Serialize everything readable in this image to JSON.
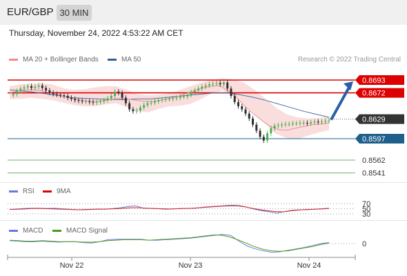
{
  "header": {
    "pair": "EUR/GBP",
    "timeframe": "30 MIN"
  },
  "datetime": "Thursday, November 24, 2022 4:53:22 AM CET",
  "credit": "Research © 2022 Trading Central",
  "colors": {
    "up": "#4caf50",
    "down": "#2e2e2e",
    "bollinger": "#f5b5b5",
    "ma20": "#e89090",
    "ma50": "#4a6fa5",
    "resistance": "#dd0000",
    "current": "#333333",
    "support": "#1f5f8b",
    "support2": "#6ab56a",
    "arrow": "#2a5ea8",
    "rsi": "#5b7fd6",
    "rsi9": "#dd2222",
    "macd": "#5b7fd6",
    "macdSignal": "#5a9a1e"
  },
  "legends": {
    "price": [
      {
        "label": "MA 20 + Bollinger Bands",
        "color": "#f08a8a"
      },
      {
        "label": "MA 50",
        "color": "#2e5f9e"
      }
    ],
    "rsi": [
      {
        "label": "RSI",
        "color": "#5b7fd6"
      },
      {
        "label": "9MA",
        "color": "#dd0000"
      }
    ],
    "macd": [
      {
        "label": "MACD",
        "color": "#5b7fd6"
      },
      {
        "label": "MACD Signal",
        "color": "#4a9a1a"
      }
    ]
  },
  "chart_data": {
    "type": "candlestick",
    "x_ticks": [
      "Nov 22",
      "Nov 23",
      "Nov 24"
    ],
    "ylim": [
      0.853,
      0.87
    ],
    "levels": [
      {
        "label": "0.8693",
        "value": 0.8693,
        "kind": "resistance"
      },
      {
        "label": "0.8672",
        "value": 0.8672,
        "kind": "resistance"
      },
      {
        "label": "0.8629",
        "value": 0.8629,
        "kind": "current"
      },
      {
        "label": "0.8597",
        "value": 0.8597,
        "kind": "support"
      },
      {
        "label": "0.8562",
        "value": 0.8562,
        "kind": "support2"
      },
      {
        "label": "0.8541",
        "value": 0.8541,
        "kind": "support2"
      }
    ],
    "close_series": [
      0.8668,
      0.867,
      0.8675,
      0.8679,
      0.8681,
      0.8683,
      0.868,
      0.8682,
      0.8684,
      0.868,
      0.8676,
      0.8672,
      0.867,
      0.8669,
      0.8668,
      0.8667,
      0.8664,
      0.8662,
      0.866,
      0.8659,
      0.8658,
      0.8658,
      0.8657,
      0.8656,
      0.8657,
      0.8658,
      0.866,
      0.8663,
      0.8667,
      0.8674,
      0.8672,
      0.8664,
      0.8655,
      0.8645,
      0.8642,
      0.8643,
      0.8648,
      0.8652,
      0.8655,
      0.8656,
      0.8658,
      0.866,
      0.8661,
      0.8662,
      0.8662,
      0.8663,
      0.8664,
      0.8666,
      0.8666,
      0.8669,
      0.8673,
      0.8676,
      0.8679,
      0.8682,
      0.8684,
      0.8686,
      0.8687,
      0.8688,
      0.8686,
      0.8689,
      0.8679,
      0.8667,
      0.8657,
      0.865,
      0.8645,
      0.8638,
      0.863,
      0.862,
      0.861,
      0.86,
      0.8594,
      0.8606,
      0.8614,
      0.8618,
      0.8619,
      0.862,
      0.8621,
      0.8621,
      0.8622,
      0.8622,
      0.8623,
      0.8623,
      0.8622,
      0.8624,
      0.8625,
      0.8624,
      0.8625,
      0.8626,
      0.8627
    ],
    "ma20": [
      0.8672,
      0.8675,
      0.8677,
      0.8677,
      0.8675,
      0.8671,
      0.8668,
      0.8664,
      0.8661,
      0.8659,
      0.8658,
      0.8659,
      0.8661,
      0.8663,
      0.8662,
      0.866,
      0.8658,
      0.8658,
      0.866,
      0.8663,
      0.8666,
      0.8671,
      0.8676,
      0.868,
      0.8683,
      0.8684,
      0.8675,
      0.8664,
      0.865,
      0.8638,
      0.8627,
      0.8617,
      0.8612,
      0.8611,
      0.8614,
      0.8617,
      0.862,
      0.8621,
      0.8623
    ],
    "ma50": [
      0.8677,
      0.8675,
      0.8673,
      0.867,
      0.8667,
      0.8664,
      0.8663,
      0.8662,
      0.8661,
      0.8661,
      0.8662,
      0.8662,
      0.8664,
      0.8666,
      0.8668,
      0.867,
      0.8672,
      0.8672,
      0.8669,
      0.8665,
      0.866,
      0.8654,
      0.8648,
      0.8642,
      0.8637,
      0.8632
    ],
    "bollinger_upper": [
      0.8683,
      0.8686,
      0.8687,
      0.8688,
      0.8686,
      0.868,
      0.8677,
      0.8678,
      0.8681,
      0.8683,
      0.8683,
      0.8677,
      0.867,
      0.8668,
      0.8669,
      0.8671,
      0.8677,
      0.8683,
      0.8689,
      0.8693,
      0.8696,
      0.8694,
      0.8689,
      0.8677,
      0.8663,
      0.8648,
      0.8637,
      0.8632,
      0.863,
      0.8631,
      0.8633
    ],
    "bollinger_lower": [
      0.8662,
      0.8662,
      0.8664,
      0.8662,
      0.866,
      0.8656,
      0.8652,
      0.865,
      0.865,
      0.8653,
      0.8655,
      0.8648,
      0.8642,
      0.864,
      0.8646,
      0.865,
      0.8651,
      0.8654,
      0.8662,
      0.8671,
      0.8676,
      0.8668,
      0.8653,
      0.8638,
      0.8622,
      0.8605,
      0.8598,
      0.8596,
      0.8602,
      0.8607,
      0.8611
    ],
    "projection": {
      "from": 0.8628,
      "to": 0.8693
    },
    "rsi": {
      "levels": [
        "70",
        "50",
        "30"
      ],
      "values": [
        47,
        49,
        51,
        52,
        52,
        51,
        52,
        50,
        48,
        46,
        46,
        47,
        49,
        48,
        51,
        54,
        59,
        61,
        52,
        51,
        50,
        48,
        49,
        51,
        51,
        52,
        56,
        58,
        60,
        62,
        64,
        62,
        56,
        48,
        42,
        38,
        33,
        39,
        44,
        46,
        46,
        48,
        50,
        52
      ]
    },
    "rsi9": [
      47,
      48,
      49,
      51,
      51,
      50,
      49,
      48,
      47,
      46,
      47,
      48,
      48,
      49,
      50,
      52,
      54,
      54,
      52,
      51,
      50,
      49,
      50,
      51,
      52,
      54,
      56,
      58,
      60,
      61,
      61,
      57,
      51,
      46,
      42,
      39,
      38,
      42,
      45,
      47,
      48,
      49,
      51
    ],
    "macd": {
      "levels": [
        "0"
      ],
      "values": [
        0.6,
        0.5,
        0.4,
        0.4,
        0.5,
        0.4,
        0.3,
        0.4,
        0.4,
        0.2,
        0.1,
        0.4,
        0.8,
        0.9,
        0.9,
        0.9,
        0.9,
        0.7,
        0.7,
        0.8,
        0.9,
        1.0,
        1.1,
        1.3,
        1.5,
        1.7,
        1.9,
        1.7,
        0.5,
        -0.5,
        -1.1,
        -1.5,
        -1.8,
        -1.7,
        -1.4,
        -1.1,
        -0.8,
        -0.4,
        0.0,
        0.2
      ]
    },
    "macd_signal": [
      0.7,
      0.6,
      0.5,
      0.5,
      0.6,
      0.5,
      0.4,
      0.4,
      0.4,
      0.3,
      0.3,
      0.4,
      0.6,
      0.7,
      0.8,
      0.8,
      0.8,
      0.7,
      0.8,
      0.9,
      1.0,
      1.1,
      1.2,
      1.4,
      1.6,
      1.8,
      1.7,
      1.3,
      0.7,
      0.0,
      -0.7,
      -1.2,
      -1.5,
      -1.6,
      -1.5,
      -1.2,
      -0.9,
      -0.6,
      -0.2,
      0.1
    ]
  }
}
